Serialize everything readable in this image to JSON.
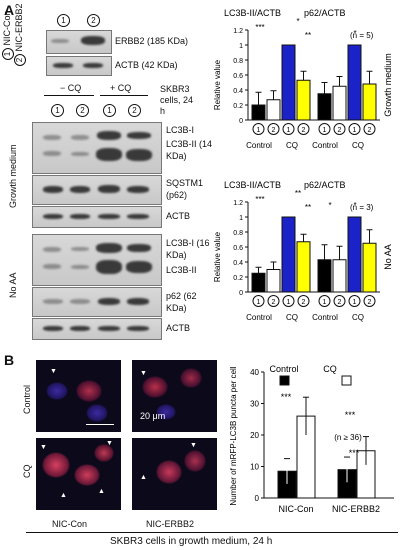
{
  "panel_a": {
    "letter": "A",
    "legend": {
      "item1_num": "1",
      "item1": "NIC-Con",
      "item2_num": "2",
      "item2": "NIC-ERBB2"
    },
    "small_blot": {
      "lane_labels": [
        "1",
        "2"
      ],
      "rows": [
        "ERBB2 (185 KDa)",
        "ACTB (42 KDa)"
      ]
    },
    "conditions": {
      "minus_cq": "− CQ",
      "plus_cq": "+ CQ",
      "cells": "SKBR3 cells, 24 h",
      "lanes": [
        "1",
        "2",
        "1",
        "2"
      ]
    },
    "growth_medium_label": "Growth medium",
    "growth_rows": [
      "LC3B-I",
      "LC3B-II (14 KDa)",
      "SQSTM1 (p62)",
      "ACTB"
    ],
    "noaa_label": "No AA",
    "noaa_rows": [
      "LC3B-I (16 KDa)",
      "LC3B-II",
      "p62 (62 KDa)",
      "ACTB"
    ]
  },
  "chart_data": [
    {
      "type": "bar",
      "title_left": "LC3B-II/ACTB",
      "title_right": "p62/ACTB",
      "n_label": "(n = 5)",
      "side_label": "Growth medium",
      "ylabel": "Relative value",
      "ylim": [
        0,
        1.2
      ],
      "yticks": [
        "0",
        "0.2",
        "0.4",
        "0.6",
        "0.8",
        "1",
        "1.2"
      ],
      "lane_labels": [
        "1",
        "2",
        "1",
        "2",
        "1",
        "2",
        "1",
        "2"
      ],
      "group_labels": [
        "Control",
        "CQ",
        "Control",
        "CQ"
      ],
      "values": [
        0.2,
        0.27,
        1.0,
        0.53,
        0.35,
        0.45,
        1.0,
        0.48
      ],
      "errors": [
        0.17,
        0.12,
        0.0,
        0.12,
        0.15,
        0.13,
        0.0,
        0.17
      ],
      "colors": [
        "#000000",
        "#ffffff",
        "#1a22c8",
        "#ffff00",
        "#000000",
        "#ffffff",
        "#1a22c8",
        "#ffff00"
      ],
      "significance": [
        "***",
        "*",
        "**",
        "*"
      ]
    },
    {
      "type": "bar",
      "title_left": "LC3B-II/ACTB",
      "title_right": "p62/ACTB",
      "n_label": "(n = 3)",
      "side_label": "No AA",
      "ylabel": "Relative value",
      "ylim": [
        0,
        1.2
      ],
      "yticks": [
        "0",
        "0.2",
        "0.4",
        "0.6",
        "0.8",
        "1",
        "1.2"
      ],
      "lane_labels": [
        "1",
        "2",
        "1",
        "2",
        "1",
        "2",
        "1",
        "2"
      ],
      "group_labels": [
        "Control",
        "CQ",
        "Control",
        "CQ"
      ],
      "values": [
        0.25,
        0.3,
        1.0,
        0.67,
        0.43,
        0.43,
        1.0,
        0.65
      ],
      "errors": [
        0.08,
        0.1,
        0.0,
        0.1,
        0.2,
        0.18,
        0.0,
        0.18
      ],
      "colors": [
        "#000000",
        "#ffffff",
        "#1a22c8",
        "#ffff00",
        "#000000",
        "#ffffff",
        "#1a22c8",
        "#ffff00"
      ],
      "significance": [
        "***",
        "**",
        "**",
        "*",
        "*"
      ]
    },
    {
      "type": "bar",
      "ylabel": "Number of mRFP-LC3B puncta per cell",
      "ylim": [
        0,
        40
      ],
      "yticks": [
        "0",
        "10",
        "20",
        "30",
        "40"
      ],
      "legend": [
        "Control",
        "CQ"
      ],
      "categories": [
        "NIC-Con",
        "NIC-ERBB2"
      ],
      "series": [
        {
          "name": "Control",
          "values": [
            8.5,
            9
          ],
          "errors": [
            4,
            4
          ]
        },
        {
          "name": "CQ",
          "values": [
            26,
            15
          ],
          "errors": [
            6,
            4.5
          ]
        }
      ],
      "n_label": "(n ≥ 36)",
      "significance": [
        "***",
        "***",
        "***"
      ]
    }
  ],
  "panel_b": {
    "letter": "B",
    "row_labels": [
      "Control",
      "CQ"
    ],
    "col_labels": [
      "NIC-Con",
      "NIC-ERBB2"
    ],
    "scale_bar": "20 μm"
  },
  "footer": "SKBR3 cells in growth medium, 24 h"
}
